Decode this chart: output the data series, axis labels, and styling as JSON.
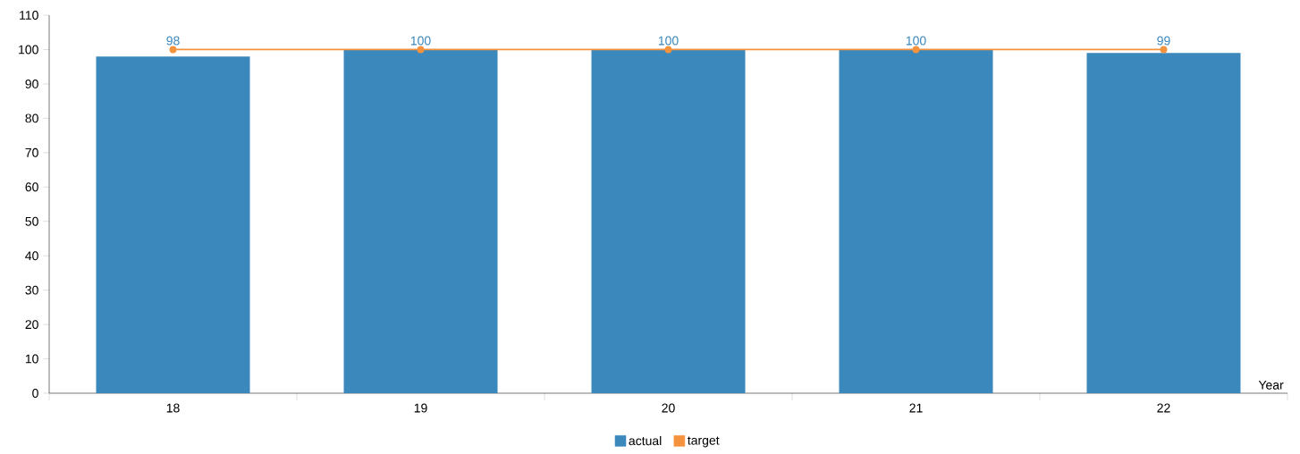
{
  "chart_data": {
    "type": "bar",
    "xlabel": "Year",
    "categories": [
      "18",
      "19",
      "20",
      "21",
      "22"
    ],
    "series": [
      {
        "name": "actual",
        "color": "#3b88bd",
        "values": [
          98,
          100,
          100,
          100,
          99
        ],
        "value_labels": [
          "98",
          "100",
          "100",
          "100",
          "99"
        ]
      },
      {
        "name": "target",
        "type": "line",
        "color": "#f5923e",
        "values": [
          100,
          100,
          100,
          100,
          100
        ]
      }
    ],
    "ylim": [
      0,
      110
    ],
    "yticks": [
      0,
      10,
      20,
      30,
      40,
      50,
      60,
      70,
      80,
      90,
      100,
      110
    ],
    "legend": "bottom",
    "marker": "circle",
    "grid": false
  }
}
